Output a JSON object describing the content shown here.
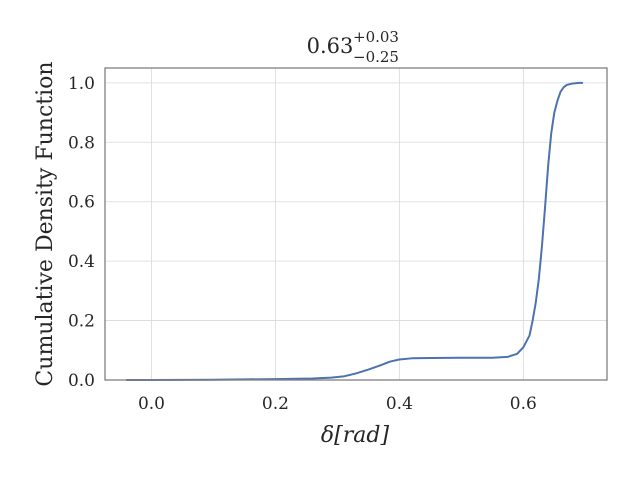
{
  "chart_data": {
    "type": "line",
    "title": {
      "value": "0.63",
      "upper": "+0.03",
      "lower": "−0.25"
    },
    "xlabel": "δ[rad]",
    "ylabel": "Cumulative Density Function",
    "xlim": [
      -0.075,
      0.735
    ],
    "ylim": [
      0.0,
      1.05
    ],
    "xticks": [
      0.0,
      0.2,
      0.4,
      0.6
    ],
    "xtick_labels": [
      "0.0",
      "0.2",
      "0.4",
      "0.6"
    ],
    "yticks": [
      0.0,
      0.2,
      0.4,
      0.6,
      0.8,
      1.0
    ],
    "ytick_labels": [
      "0.0",
      "0.2",
      "0.4",
      "0.6",
      "0.8",
      "1.0"
    ],
    "grid": true,
    "series": [
      {
        "color": "#4c72b0",
        "x": [
          -0.04,
          0.0,
          0.1,
          0.2,
          0.26,
          0.29,
          0.31,
          0.33,
          0.35,
          0.37,
          0.385,
          0.4,
          0.42,
          0.45,
          0.5,
          0.55,
          0.575,
          0.59,
          0.6,
          0.61,
          0.615,
          0.62,
          0.625,
          0.63,
          0.635,
          0.64,
          0.645,
          0.65,
          0.655,
          0.66,
          0.665,
          0.67,
          0.68,
          0.69,
          0.695
        ],
        "y": [
          0.0,
          0.0,
          0.001,
          0.003,
          0.005,
          0.008,
          0.012,
          0.022,
          0.035,
          0.05,
          0.062,
          0.069,
          0.073,
          0.074,
          0.075,
          0.075,
          0.078,
          0.088,
          0.11,
          0.15,
          0.2,
          0.26,
          0.34,
          0.45,
          0.58,
          0.72,
          0.83,
          0.9,
          0.94,
          0.97,
          0.985,
          0.993,
          0.998,
          1.0,
          1.0
        ]
      }
    ]
  }
}
